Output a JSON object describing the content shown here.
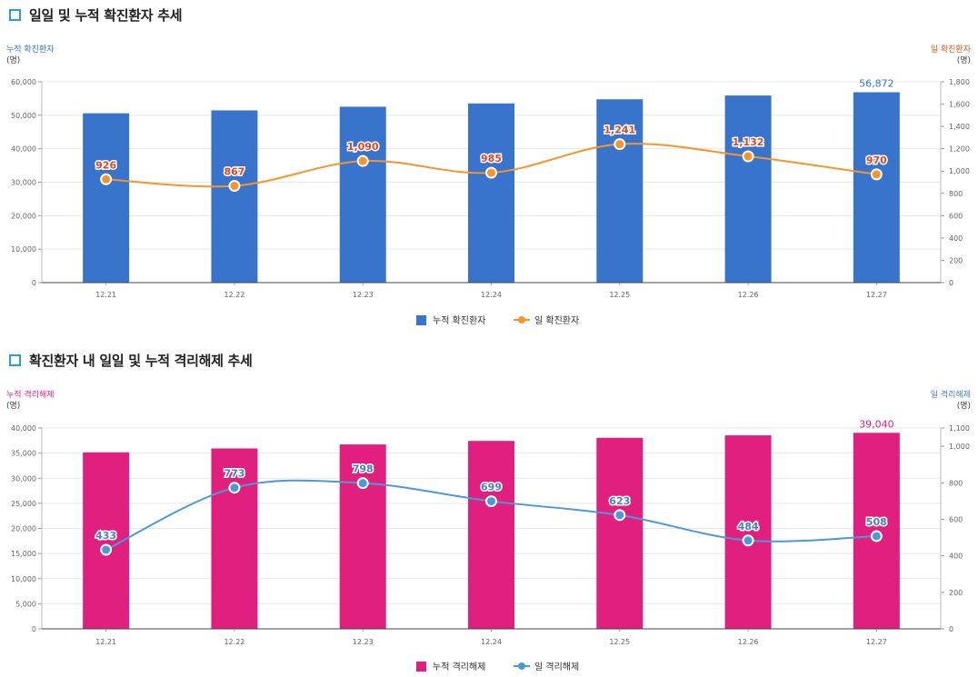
{
  "chart_data": [
    {
      "type": "bar+line",
      "title": "일일 및 누적 확진환자 추세",
      "categories": [
        "12.21",
        "12.22",
        "12.23",
        "12.24",
        "12.25",
        "12.26",
        "12.27"
      ],
      "left_axis_title": "누적 확진환자",
      "right_axis_title": "일 확진환자",
      "unit": "(명)",
      "left_ylim": [
        0,
        60000
      ],
      "left_ticks": [
        "60,000",
        "50,000",
        "40,000",
        "30,000",
        "20,000",
        "10,000",
        "0"
      ],
      "right_ylim": [
        0,
        1800
      ],
      "right_ticks": [
        "1,800",
        "1,600",
        "1,400",
        "1,200",
        "1,000",
        "800",
        "600",
        "400",
        "200",
        "0"
      ],
      "series": [
        {
          "name": "누적 확진환자",
          "kind": "bar",
          "axis": "left",
          "values": [
            50591,
            51460,
            52550,
            53533,
            54770,
            55902,
            56872
          ],
          "color": "#3874cc"
        },
        {
          "name": "일 확진환자",
          "kind": "line",
          "axis": "right",
          "values": [
            926,
            867,
            1090,
            985,
            1241,
            1132,
            970
          ],
          "labels": [
            "926",
            "867",
            "1,090",
            "985",
            "1,241",
            "1,132",
            "970"
          ],
          "color": "#f5952a"
        }
      ],
      "bar_last_label": "56,872",
      "grid": true,
      "legend": "bottom-center"
    },
    {
      "type": "bar+line",
      "title": "확진환자 내 일일 및 누적 격리해제 추세",
      "categories": [
        "12.21",
        "12.22",
        "12.23",
        "12.24",
        "12.25",
        "12.26",
        "12.27"
      ],
      "left_axis_title": "누적 격리해제",
      "right_axis_title": "일 격리해제",
      "unit": "(명)",
      "left_ylim": [
        0,
        40000
      ],
      "left_ticks": [
        "40,000",
        "35,000",
        "30,000",
        "25,000",
        "20,000",
        "15,000",
        "10,000",
        "5,000",
        "0"
      ],
      "right_ylim": [
        0,
        1100
      ],
      "right_ticks": [
        "1,100",
        "1,000",
        "800",
        "600",
        "400",
        "200",
        "0"
      ],
      "series": [
        {
          "name": "누적 격리해제",
          "kind": "bar",
          "axis": "left",
          "values": [
            35157,
            35930,
            36728,
            37427,
            38050,
            38534,
            39040
          ],
          "color": "#e01f7e"
        },
        {
          "name": "일 격리해제",
          "kind": "line",
          "axis": "right",
          "values": [
            433,
            773,
            798,
            699,
            623,
            484,
            508
          ],
          "labels": [
            "433",
            "773",
            "798",
            "699",
            "623",
            "484",
            "508"
          ],
          "color": "#4a9ad8"
        }
      ],
      "bar_last_label": "39,040",
      "grid": true,
      "legend": "bottom-center"
    }
  ]
}
